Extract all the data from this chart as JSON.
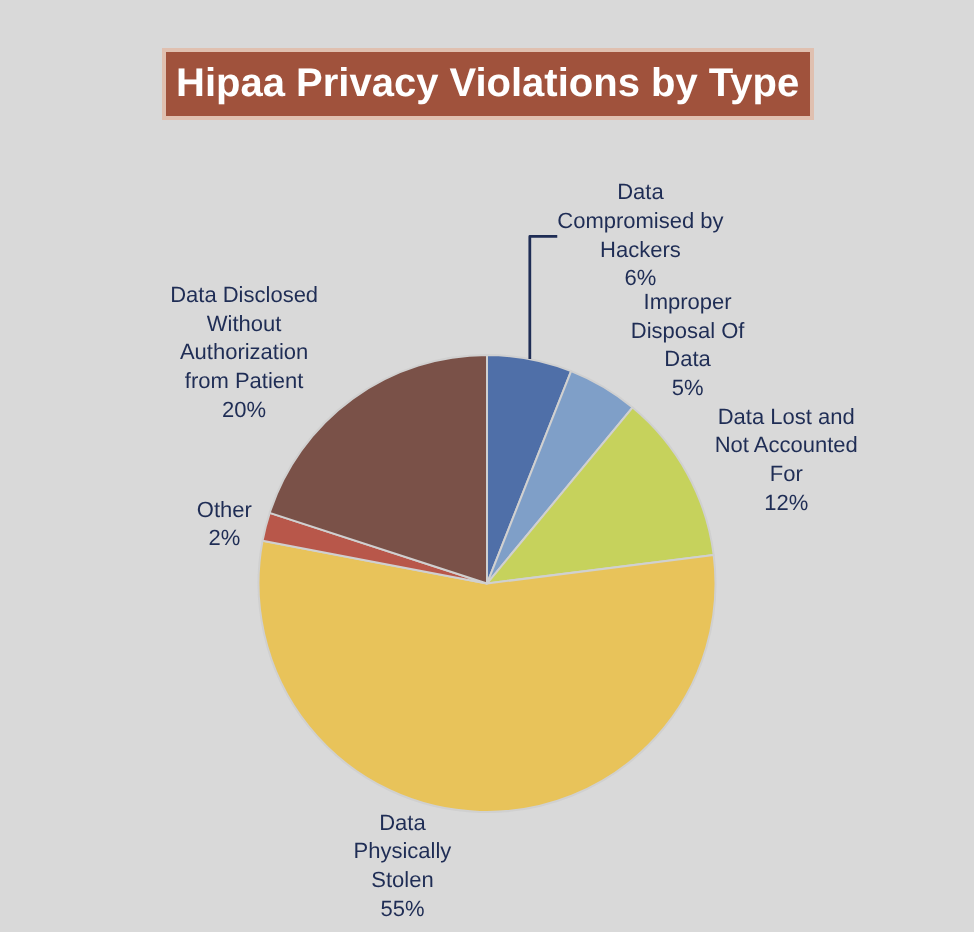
{
  "chart_data": {
    "type": "pie",
    "title": "Hipaa Privacy Violations by Type",
    "categories": [
      "Data Compromised by Hackers",
      "Improper Disposal Of Data",
      "Data Lost and Not Accounted For",
      "Data Physically Stolen",
      "Other",
      "Data Disclosed Without Authorization from Patient"
    ],
    "values": [
      6,
      5,
      12,
      55,
      2,
      20
    ],
    "value_labels": [
      "6%",
      "5%",
      "12%",
      "55%",
      "2%",
      "20%"
    ],
    "colors": [
      "#4f6fa8",
      "#7f9fc8",
      "#c6d25c",
      "#e8c35a",
      "#b8574a",
      "#7a5148"
    ],
    "legend": false
  }
}
